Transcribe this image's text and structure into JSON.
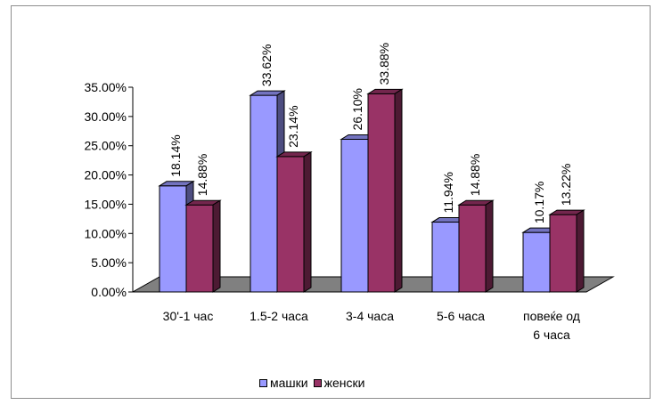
{
  "chart_data": {
    "type": "bar",
    "title": "",
    "xlabel": "",
    "ylabel": "",
    "categories": [
      "30'-1 час",
      "1.5-2 часа",
      "3-4 часа",
      "5-6 часа",
      "повеќе од\n6 часа"
    ],
    "series": [
      {
        "name": "машки",
        "values": [
          18.14,
          33.62,
          26.1,
          11.94,
          10.17
        ],
        "color": "#9999ff"
      },
      {
        "name": "женски",
        "values": [
          14.88,
          23.14,
          33.88,
          14.88,
          13.22
        ],
        "color": "#993366"
      }
    ],
    "value_labels": [
      [
        "18.14%",
        "33.62%",
        "26.10%",
        "11.94%",
        "10.17%"
      ],
      [
        "14.88%",
        "23.14%",
        "33.88%",
        "14.88%",
        "13.22%"
      ]
    ],
    "y_ticks": [
      "0.00%",
      "5.00%",
      "10.00%",
      "15.00%",
      "20.00%",
      "25.00%",
      "30.00%",
      "35.00%"
    ],
    "ylim": [
      0,
      35
    ],
    "three_d": true,
    "grid": false,
    "legend_position": "bottom",
    "floor_color": "#808080"
  }
}
